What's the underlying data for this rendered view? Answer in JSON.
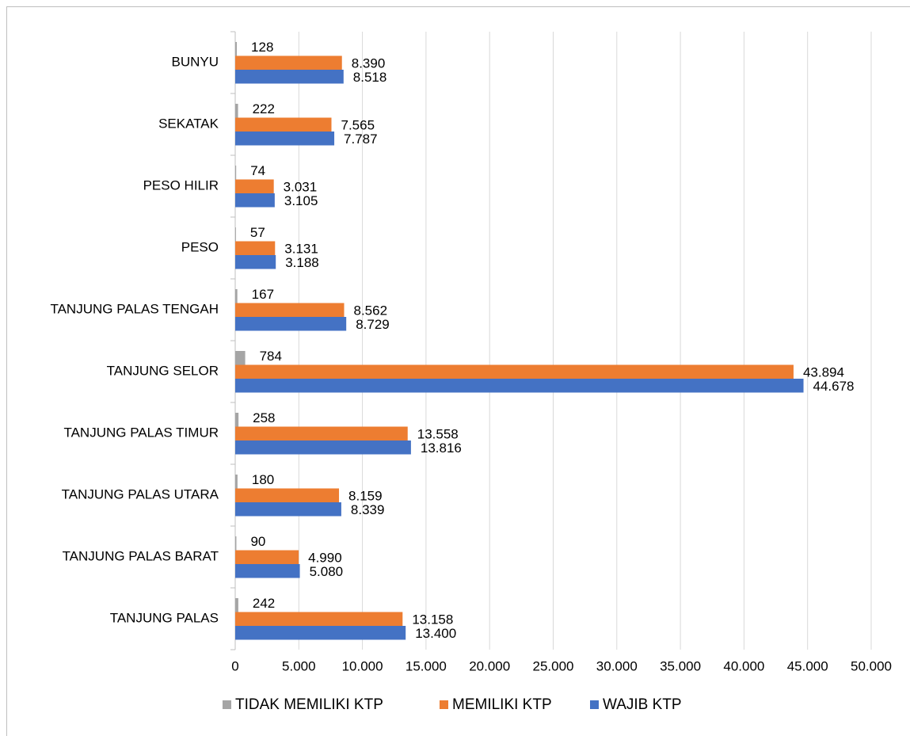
{
  "chart_data": {
    "type": "bar",
    "orientation": "horizontal",
    "categories": [
      "BUNYU",
      "SEKATAK",
      "PESO HILIR",
      "PESO",
      "TANJUNG PALAS TENGAH",
      "TANJUNG SELOR",
      "TANJUNG PALAS TIMUR",
      "TANJUNG PALAS UTARA",
      "TANJUNG PALAS BARAT",
      "TANJUNG PALAS"
    ],
    "series": [
      {
        "name": "TIDAK MEMILIKI KTP",
        "color": "#a5a5a5",
        "values": [
          128,
          222,
          74,
          57,
          167,
          784,
          258,
          180,
          90,
          242
        ]
      },
      {
        "name": "MEMILIKI KTP",
        "color": "#ed7d31",
        "values": [
          8390,
          7565,
          3031,
          3131,
          8562,
          43894,
          13558,
          8159,
          4990,
          13158
        ],
        "value_labels": [
          "8.390",
          "7.565",
          "3.031",
          "3.131",
          "8.562",
          "43.894",
          "13.558",
          "8.159",
          "4.990",
          "13.158"
        ]
      },
      {
        "name": "WAJIB KTP",
        "color": "#4472c4",
        "values": [
          8518,
          7787,
          3105,
          3188,
          8729,
          44678,
          13816,
          8339,
          5080,
          13400
        ],
        "value_labels": [
          "8.518",
          "7.787",
          "3.105",
          "3.188",
          "8.729",
          "44.678",
          "13.816",
          "8.339",
          "5.080",
          "13.400"
        ]
      }
    ],
    "xlim": [
      0,
      50000
    ],
    "xticks": [
      0,
      {
        "value": 5000,
        "label": "5.000"
      },
      {
        "value": 10000,
        "label": "10.000"
      },
      {
        "value": 15000,
        "label": "15.000"
      },
      {
        "value": 20000,
        "label": "20.000"
      },
      {
        "value": 25000,
        "label": "25.000"
      },
      {
        "value": 30000,
        "label": "30.000"
      },
      {
        "value": 35000,
        "label": "35.000"
      },
      {
        "value": 40000,
        "label": "40.000"
      },
      {
        "value": 45000,
        "label": "45.000"
      },
      {
        "value": 50000,
        "label": "50.000"
      }
    ],
    "grid": true,
    "legend": "bottom"
  }
}
